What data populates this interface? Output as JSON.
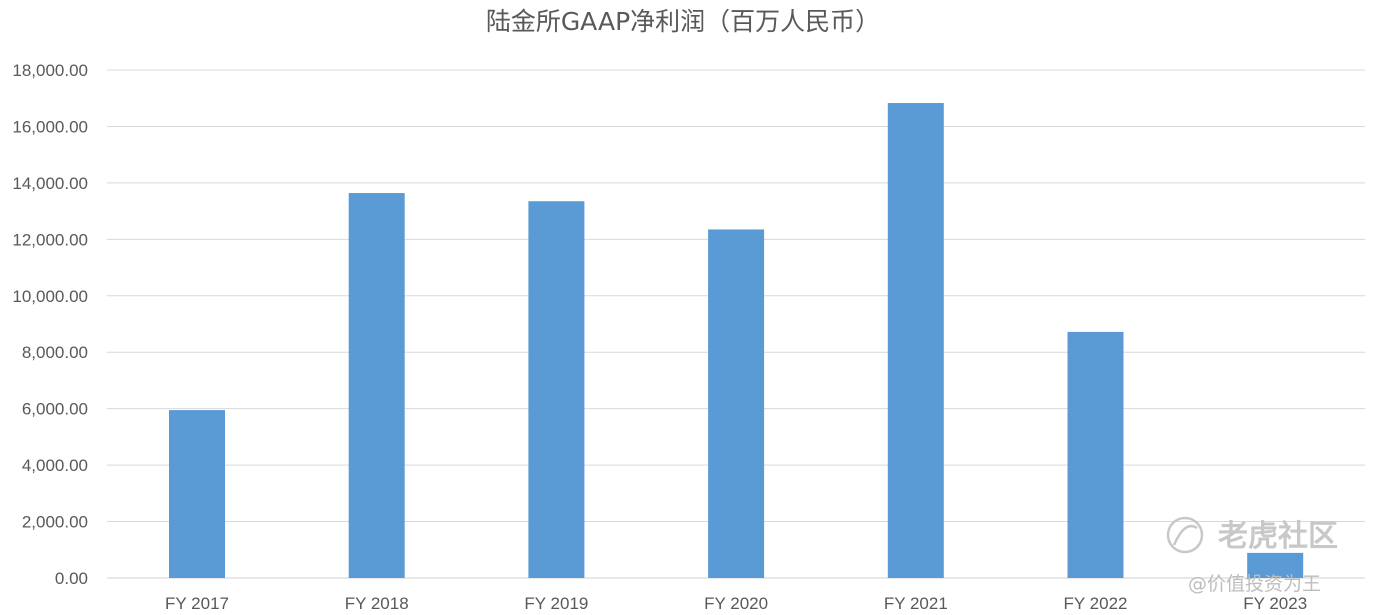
{
  "chart_data": {
    "type": "bar",
    "title": "陆金所GAAP净利润（百万人民币）",
    "xlabel": "",
    "ylabel": "",
    "categories": [
      "FY 2017",
      "FY 2018",
      "FY 2019",
      "FY 2020",
      "FY 2021",
      "FY 2022",
      "FY 2023"
    ],
    "values": [
      5950,
      13640,
      13350,
      12350,
      16830,
      8720,
      890
    ],
    "ylim": [
      0,
      18000
    ],
    "yticks": [
      "0.00",
      "2,000.00",
      "4,000.00",
      "6,000.00",
      "8,000.00",
      "10,000.00",
      "12,000.00",
      "14,000.00",
      "16,000.00",
      "18,000.00"
    ],
    "ytick_values": [
      0,
      2000,
      4000,
      6000,
      8000,
      10000,
      12000,
      14000,
      16000,
      18000
    ],
    "grid": true,
    "legend": "none",
    "colors": {
      "bar": "#5b9bd5",
      "grid": "#d9d9d9",
      "text": "#595959"
    }
  },
  "watermark": {
    "logo_text": "老虎社区",
    "user_text": "@价值投资为王",
    "icon": "tiger-logo-icon"
  }
}
